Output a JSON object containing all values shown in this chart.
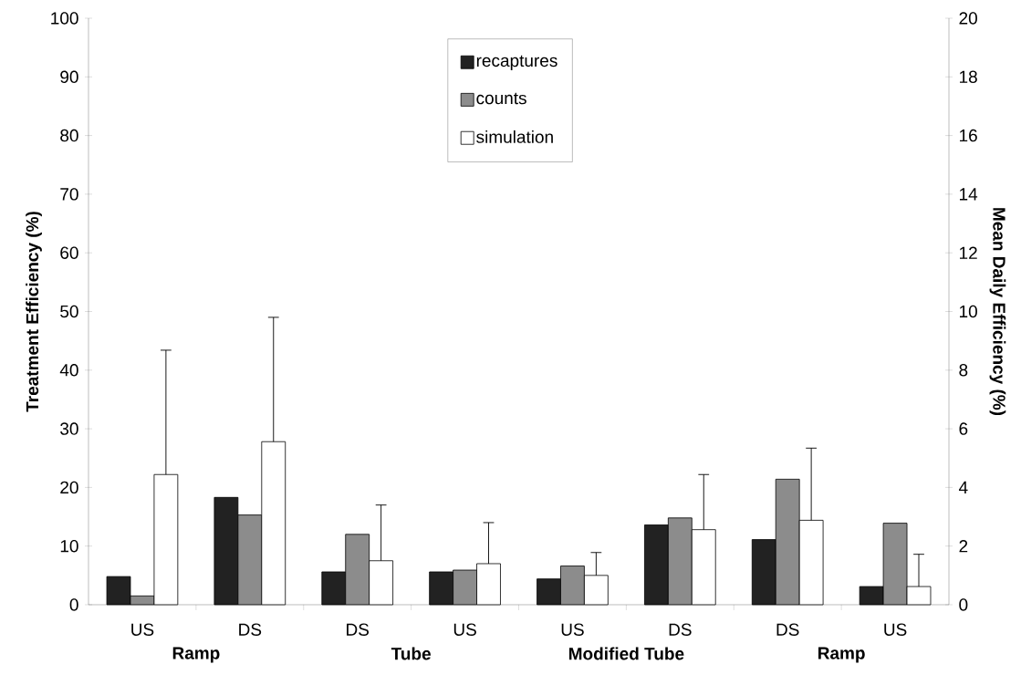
{
  "chart_data": {
    "type": "bar",
    "ylabel": "Treatment Efficiency (%)",
    "y2label": "Mean Daily Efficiency (%)",
    "categories": [
      "US",
      "DS",
      "DS",
      "US",
      "US",
      "DS",
      "DS",
      "US"
    ],
    "annotations": [
      "Ramp",
      "Tube",
      "Modified Tube",
      "Ramp"
    ],
    "series": [
      {
        "name": "recaptures",
        "color": "#222222",
        "values": [
          4.8,
          18.3,
          5.6,
          5.6,
          4.4,
          13.6,
          11.1,
          3.1
        ]
      },
      {
        "name": "counts",
        "color": "#8c8c8c",
        "values": [
          1.5,
          15.3,
          12,
          5.9,
          6.6,
          14.8,
          21.4,
          13.9
        ]
      },
      {
        "name": "simulation",
        "color": "#ffffff",
        "values": [
          22.2,
          27.8,
          7.5,
          7,
          5,
          12.8,
          14.4,
          3.1
        ],
        "errors": [
          [
            22.2,
            43.4
          ],
          [
            27.8,
            49
          ],
          [
            7.5,
            17
          ],
          [
            7,
            14
          ],
          [
            5,
            8.9
          ],
          [
            12.8,
            22.2
          ],
          [
            14.4,
            26.7
          ],
          [
            3.1,
            8.6
          ]
        ]
      }
    ],
    "ylim": [
      0,
      100
    ],
    "yticks": [
      0,
      10,
      20,
      30,
      40,
      50,
      60,
      70,
      80,
      90,
      100
    ],
    "y2lim": [
      0,
      20
    ],
    "y2ticks": [
      0,
      2,
      4,
      6,
      8,
      10,
      12,
      14,
      16,
      18,
      20
    ],
    "grid": false,
    "legend": "top"
  }
}
